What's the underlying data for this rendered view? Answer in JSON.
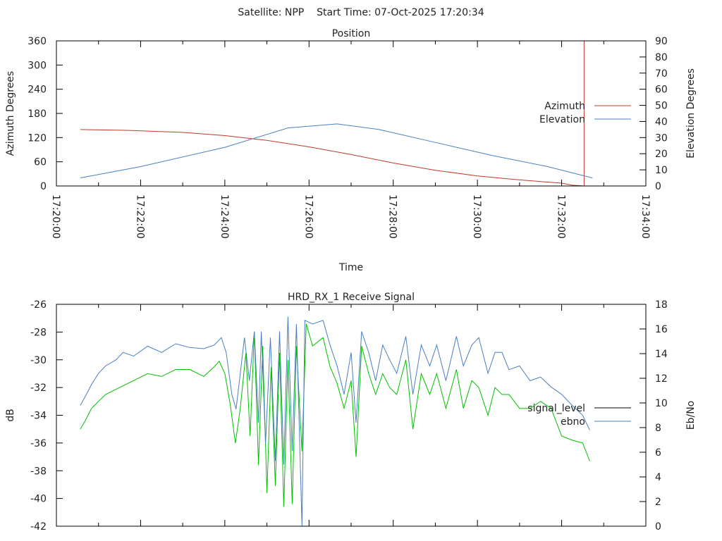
{
  "header": {
    "satellite": "Satellite: NPP",
    "start_time": "Start Time: 07-Oct-2025 17:20:34"
  },
  "colors": {
    "azimuth": "#c0392b",
    "elevation": "#4a7fc0",
    "signal": "#00c000",
    "signal_legend": "#000000",
    "ebno": "#4a7fc0"
  },
  "chart_data": [
    {
      "type": "line",
      "title": "Position",
      "xlabel": "Time",
      "ylabel": "Azimuth Degrees",
      "y2label": "Elevation Degrees",
      "x_unit": "seconds since 17:20:00",
      "xlim": [
        0,
        840
      ],
      "xticks": [
        "17:20:00",
        "17:22:00",
        "17:24:00",
        "17:26:00",
        "17:28:00",
        "17:30:00",
        "17:32:00",
        "17:34:00"
      ],
      "ylim": [
        0,
        360
      ],
      "yticks": [
        "0",
        "60",
        "120",
        "180",
        "240",
        "300",
        "360"
      ],
      "y2lim": [
        0,
        90
      ],
      "y2ticks": [
        "0",
        "10",
        "20",
        "30",
        "40",
        "50",
        "60",
        "70",
        "80",
        "90"
      ],
      "legend": "right",
      "series": [
        {
          "name": "Azimuth",
          "axis": "y",
          "points": [
            [
              34,
              140
            ],
            [
              100,
              138
            ],
            [
              180,
              133
            ],
            [
              240,
              125
            ],
            [
              300,
              113
            ],
            [
              360,
              97
            ],
            [
              420,
              78
            ],
            [
              480,
              57
            ],
            [
              540,
              39
            ],
            [
              600,
              25
            ],
            [
              660,
              15
            ],
            [
              720,
              7
            ],
            [
              735,
              2
            ],
            [
              752,
              0
            ],
            [
              752,
              360
            ]
          ]
        },
        {
          "name": "Elevation",
          "axis": "y2",
          "points": [
            [
              34,
              5
            ],
            [
              120,
              12
            ],
            [
              240,
              24
            ],
            [
              330,
              36
            ],
            [
              400,
              38.5
            ],
            [
              460,
              35
            ],
            [
              540,
              27
            ],
            [
              620,
              19
            ],
            [
              700,
              12
            ],
            [
              764,
              5
            ]
          ]
        }
      ]
    },
    {
      "type": "line",
      "title": "HRD_RX_1 Receive Signal",
      "ylabel": "dB",
      "y2label": "Eb/No",
      "x_unit": "seconds since 17:20:00",
      "xlim": [
        0,
        840
      ],
      "ylim": [
        -42,
        -26
      ],
      "yticks": [
        "-42",
        "-40",
        "-38",
        "-36",
        "-34",
        "-32",
        "-30",
        "-28",
        "-26"
      ],
      "y2lim": [
        0,
        18
      ],
      "y2ticks": [
        "0",
        "2",
        "4",
        "6",
        "8",
        "10",
        "12",
        "14",
        "16",
        "18"
      ],
      "legend": "right",
      "series": [
        {
          "name": "signal_level",
          "axis": "y",
          "points": [
            [
              34,
              -35
            ],
            [
              40,
              -34.5
            ],
            [
              50,
              -33.5
            ],
            [
              60,
              -33
            ],
            [
              70,
              -32.5
            ],
            [
              90,
              -32
            ],
            [
              110,
              -31.5
            ],
            [
              130,
              -31
            ],
            [
              150,
              -31.2
            ],
            [
              170,
              -30.7
            ],
            [
              190,
              -30.7
            ],
            [
              210,
              -31.2
            ],
            [
              225,
              -30.5
            ],
            [
              232,
              -30.1
            ],
            [
              240,
              -31
            ],
            [
              248,
              -33.3
            ],
            [
              255,
              -36
            ],
            [
              262,
              -33.5
            ],
            [
              270,
              -29.5
            ],
            [
              276,
              -35.5
            ],
            [
              282,
              -28
            ],
            [
              288,
              -37.6
            ],
            [
              294,
              -29
            ],
            [
              300,
              -39.6
            ],
            [
              306,
              -30.5
            ],
            [
              312,
              -39.1
            ],
            [
              318,
              -29.5
            ],
            [
              324,
              -40.6
            ],
            [
              330,
              -30
            ],
            [
              336,
              -40.4
            ],
            [
              342,
              -29
            ],
            [
              350,
              -36.6
            ],
            [
              356,
              -27.4
            ],
            [
              365,
              -29
            ],
            [
              380,
              -28.4
            ],
            [
              390,
              -30.5
            ],
            [
              400,
              -31.7
            ],
            [
              410,
              -33.5
            ],
            [
              420,
              -31.5
            ],
            [
              427,
              -37
            ],
            [
              435,
              -29
            ],
            [
              445,
              -31
            ],
            [
              455,
              -32.5
            ],
            [
              465,
              -31
            ],
            [
              475,
              -32
            ],
            [
              485,
              -32.5
            ],
            [
              498,
              -30
            ],
            [
              508,
              -35
            ],
            [
              520,
              -31
            ],
            [
              532,
              -32.5
            ],
            [
              542,
              -31
            ],
            [
              555,
              -33.5
            ],
            [
              570,
              -30.7
            ],
            [
              580,
              -33.5
            ],
            [
              592,
              -31.5
            ],
            [
              602,
              -32
            ],
            [
              615,
              -34
            ],
            [
              625,
              -32
            ],
            [
              635,
              -32.5
            ],
            [
              645,
              -32.5
            ],
            [
              660,
              -33.5
            ],
            [
              675,
              -33.5
            ],
            [
              690,
              -33
            ],
            [
              705,
              -33.5
            ],
            [
              720,
              -35.5
            ],
            [
              735,
              -35.8
            ],
            [
              750,
              -36
            ],
            [
              760,
              -37.3
            ]
          ]
        },
        {
          "name": "ebno",
          "axis": "y2",
          "points": [
            [
              34,
              9.8
            ],
            [
              40,
              10.4
            ],
            [
              50,
              11.5
            ],
            [
              60,
              12.4
            ],
            [
              70,
              13
            ],
            [
              85,
              13.5
            ],
            [
              95,
              14.1
            ],
            [
              110,
              13.8
            ],
            [
              130,
              14.6
            ],
            [
              150,
              14.1
            ],
            [
              170,
              14.8
            ],
            [
              190,
              14.5
            ],
            [
              210,
              14.4
            ],
            [
              225,
              14.7
            ],
            [
              235,
              15.3
            ],
            [
              242,
              14.1
            ],
            [
              250,
              10.7
            ],
            [
              256,
              9.5
            ],
            [
              262,
              12.4
            ],
            [
              268,
              15.3
            ],
            [
              275,
              11.8
            ],
            [
              282,
              15.8
            ],
            [
              288,
              8.4
            ],
            [
              292,
              15.8
            ],
            [
              298,
              6.7
            ],
            [
              305,
              15.3
            ],
            [
              312,
              5.3
            ],
            [
              318,
              15.8
            ],
            [
              324,
              5
            ],
            [
              330,
              17
            ],
            [
              336,
              6.1
            ],
            [
              342,
              16.4
            ],
            [
              350,
              0
            ],
            [
              354,
              16.7
            ],
            [
              365,
              16.4
            ],
            [
              380,
              16.7
            ],
            [
              390,
              14.7
            ],
            [
              400,
              13
            ],
            [
              410,
              10.7
            ],
            [
              420,
              14.1
            ],
            [
              427,
              8.4
            ],
            [
              435,
              15.8
            ],
            [
              445,
              14.1
            ],
            [
              455,
              11.8
            ],
            [
              465,
              14.7
            ],
            [
              475,
              13.5
            ],
            [
              485,
              12.4
            ],
            [
              498,
              15.4
            ],
            [
              508,
              10.7
            ],
            [
              520,
              14.7
            ],
            [
              532,
              13
            ],
            [
              542,
              14.7
            ],
            [
              555,
              11.8
            ],
            [
              570,
              15.4
            ],
            [
              580,
              13
            ],
            [
              592,
              14.7
            ],
            [
              602,
              15.3
            ],
            [
              615,
              12.4
            ],
            [
              625,
              14.1
            ],
            [
              635,
              14.1
            ],
            [
              645,
              12.7
            ],
            [
              660,
              13
            ],
            [
              675,
              11.8
            ],
            [
              690,
              12.1
            ],
            [
              705,
              11.3
            ],
            [
              720,
              10.7
            ],
            [
              735,
              9.8
            ],
            [
              750,
              9
            ],
            [
              760,
              7.8
            ]
          ]
        }
      ]
    }
  ]
}
